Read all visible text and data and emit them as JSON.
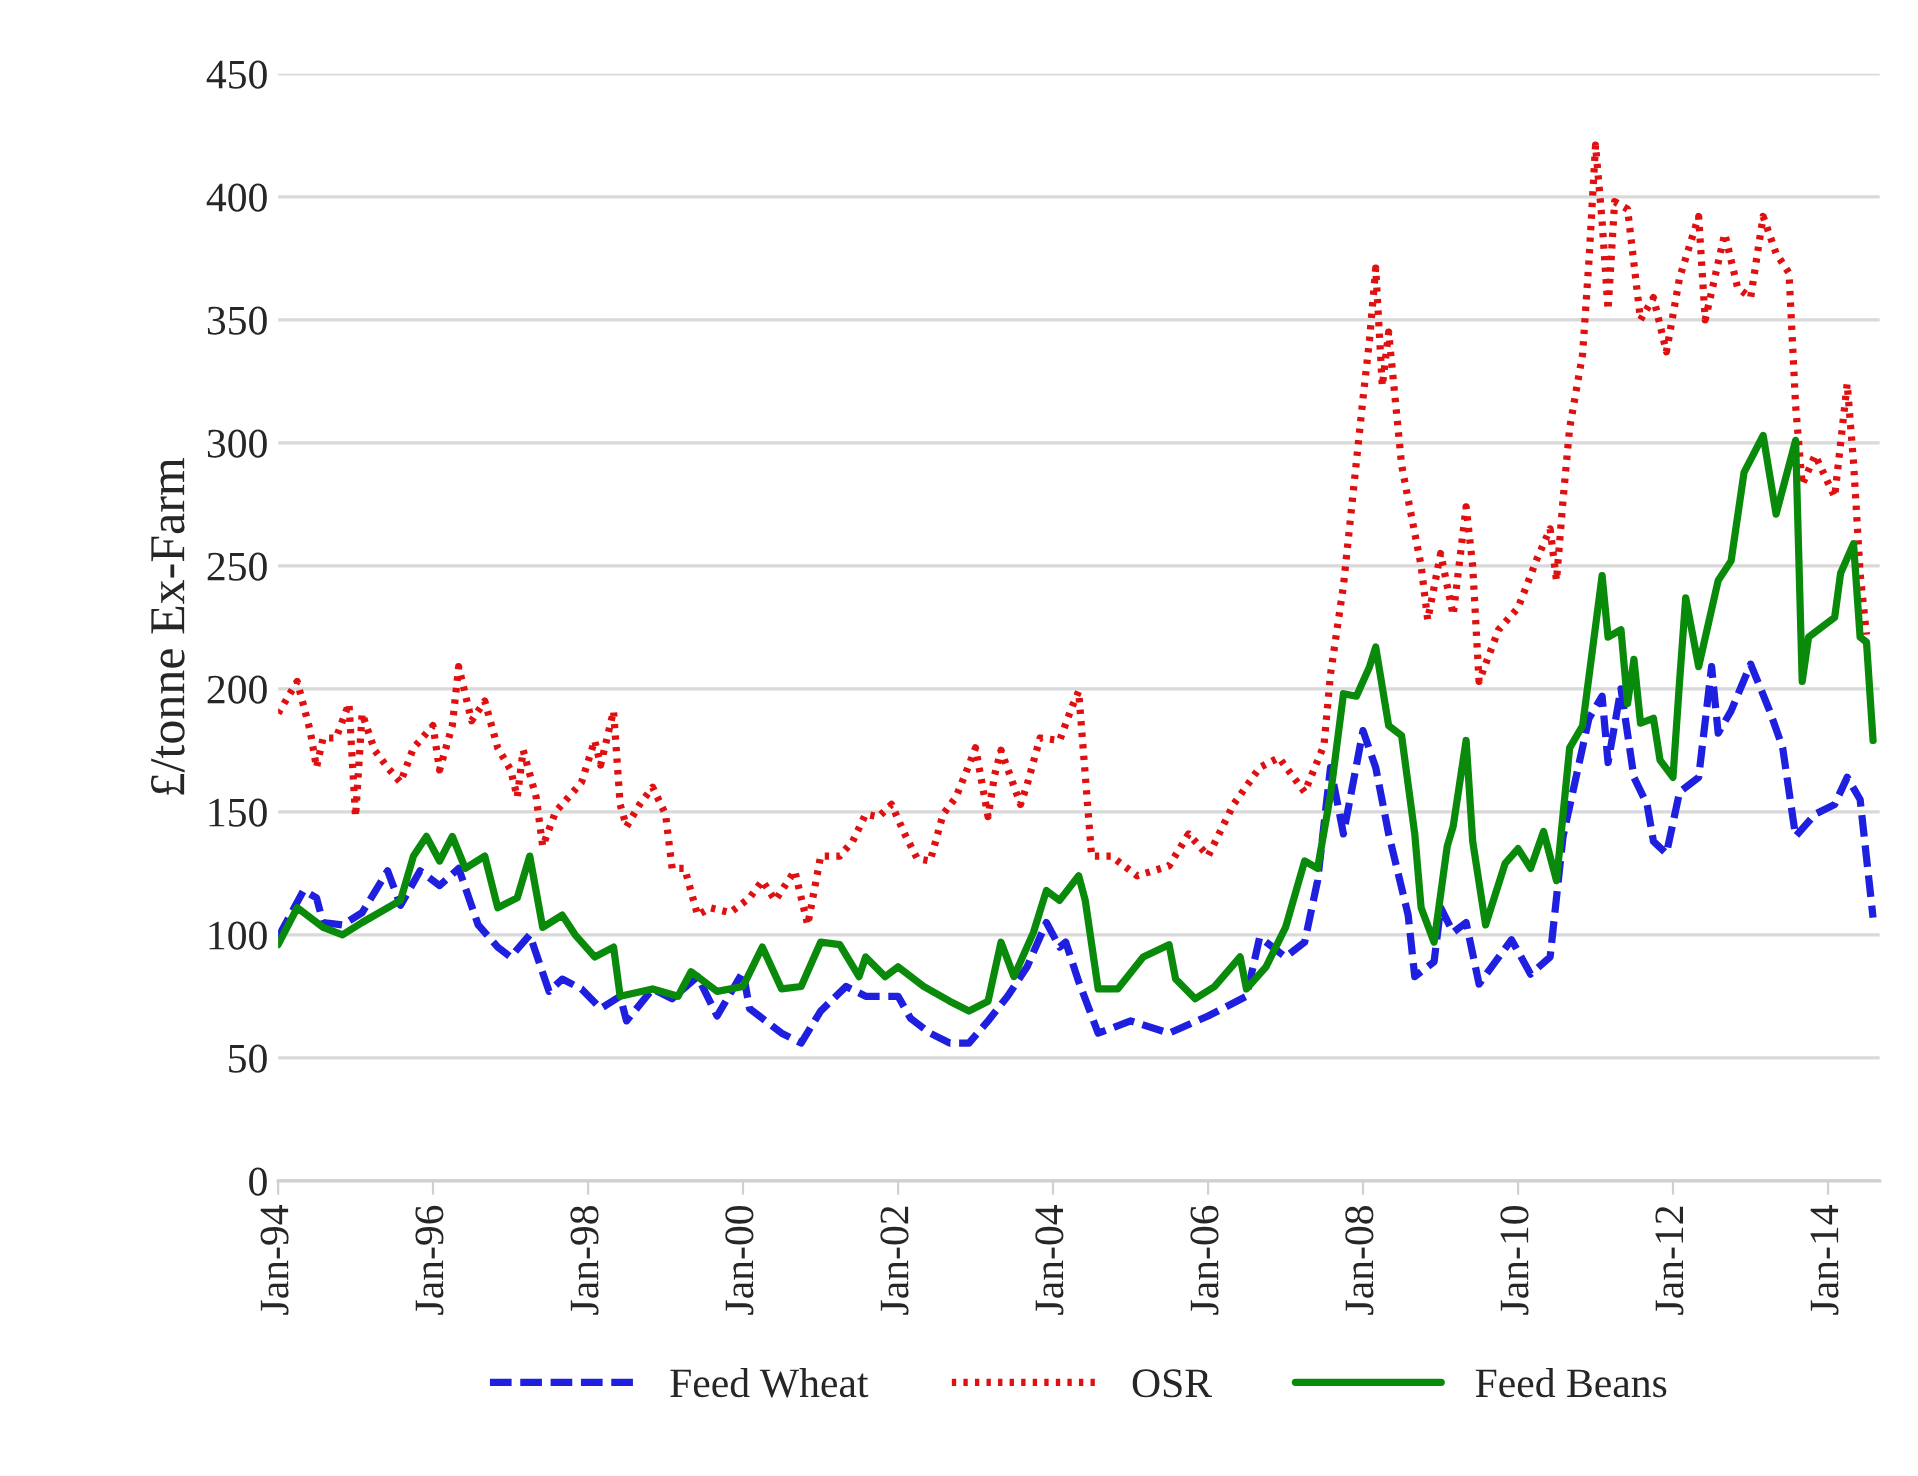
{
  "chart_data": {
    "type": "line",
    "ylabel": "£/tonne Ex-Farm",
    "ylim": [
      0,
      450
    ],
    "yticks": [
      0,
      50,
      100,
      150,
      200,
      250,
      300,
      350,
      400,
      450
    ],
    "xlim": [
      "1994-01",
      "2014-09"
    ],
    "xticks": [
      {
        "value": "1994-01",
        "label": "Jan-94"
      },
      {
        "value": "1996-01",
        "label": "Jan-96"
      },
      {
        "value": "1998-01",
        "label": "Jan-98"
      },
      {
        "value": "2000-01",
        "label": "Jan-00"
      },
      {
        "value": "2002-01",
        "label": "Jan-02"
      },
      {
        "value": "2004-01",
        "label": "Jan-04"
      },
      {
        "value": "2006-01",
        "label": "Jan-06"
      },
      {
        "value": "2008-01",
        "label": "Jan-08"
      },
      {
        "value": "2010-01",
        "label": "Jan-10"
      },
      {
        "value": "2012-01",
        "label": "Jan-12"
      },
      {
        "value": "2014-01",
        "label": "Jan-14"
      }
    ],
    "grid": "y",
    "legend": "bottom",
    "marker": "none",
    "series": [
      {
        "name": "Feed Wheat",
        "color": "#1f1fe0",
        "line_style": "dashed",
        "x": [
          "1994-01",
          "1994-05",
          "1994-07",
          "1994-08",
          "1994-11",
          "1995-02",
          "1995-06",
          "1995-08",
          "1995-11",
          "1996-02",
          "1996-05",
          "1996-08",
          "1996-11",
          "1997-01",
          "1997-04",
          "1997-07",
          "1997-09",
          "1997-12",
          "1998-03",
          "1998-06",
          "1998-07",
          "1998-11",
          "1999-02",
          "1999-06",
          "1999-09",
          "2000-01",
          "2000-02",
          "2000-07",
          "2000-10",
          "2001-01",
          "2001-05",
          "2001-08",
          "2002-01",
          "2002-03",
          "2002-06",
          "2002-09",
          "2002-12",
          "2003-03",
          "2003-06",
          "2003-09",
          "2003-12",
          "2004-02",
          "2004-03",
          "2004-05",
          "2004-08",
          "2005-01",
          "2005-07",
          "2006-01",
          "2006-07",
          "2006-09",
          "2007-01",
          "2007-04",
          "2007-06",
          "2007-08",
          "2007-10",
          "2008-01",
          "2008-03",
          "2008-05",
          "2008-08",
          "2008-09",
          "2008-12",
          "2009-01",
          "2009-03",
          "2009-05",
          "2009-07",
          "2009-12",
          "2010-03",
          "2010-06",
          "2010-08",
          "2010-12",
          "2011-02",
          "2011-03",
          "2011-05",
          "2011-07",
          "2011-09",
          "2011-10",
          "2011-12",
          "2012-02",
          "2012-05",
          "2012-07",
          "2012-08",
          "2012-10",
          "2013-01",
          "2013-04",
          "2013-06",
          "2013-08",
          "2013-11",
          "2014-02",
          "2014-04",
          "2014-06",
          "2014-08"
        ],
        "values": [
          99,
          118,
          115,
          105,
          104,
          109,
          126,
          112,
          126,
          120,
          127,
          104,
          95,
          91,
          100,
          77,
          82,
          78,
          70,
          75,
          65,
          78,
          74,
          83,
          67,
          85,
          70,
          60,
          56,
          69,
          79,
          75,
          75,
          66,
          60,
          56,
          56,
          65,
          75,
          87,
          105,
          95,
          97,
          81,
          60,
          65,
          60,
          67,
          75,
          99,
          91,
          97,
          122,
          168,
          141,
          183,
          168,
          141,
          108,
          83,
          89,
          111,
          101,
          105,
          80,
          98,
          84,
          91,
          140,
          188,
          197,
          170,
          200,
          164,
          153,
          138,
          133,
          158,
          164,
          209,
          182,
          191,
          210,
          191,
          176,
          140,
          149,
          153,
          164,
          155,
          107
        ]
      },
      {
        "name": "OSR",
        "color": "#e01010",
        "line_style": "dotted",
        "x": [
          "1994-01",
          "1994-04",
          "1994-06",
          "1994-07",
          "1994-08",
          "1994-10",
          "1994-12",
          "1995-01",
          "1995-02",
          "1995-04",
          "1995-06",
          "1995-08",
          "1995-10",
          "1996-01",
          "1996-02",
          "1996-04",
          "1996-05",
          "1996-07",
          "1996-09",
          "1996-11",
          "1997-01",
          "1997-02",
          "1997-03",
          "1997-05",
          "1997-06",
          "1997-08",
          "1997-10",
          "1997-12",
          "1998-02",
          "1998-03",
          "1998-05",
          "1998-06",
          "1998-07",
          "1998-09",
          "1998-11",
          "1999-01",
          "1999-02",
          "1999-04",
          "1999-06",
          "1999-08",
          "1999-11",
          "2000-02",
          "2000-04",
          "2000-06",
          "2000-09",
          "2000-11",
          "2001-01",
          "2001-04",
          "2001-06",
          "2001-08",
          "2001-10",
          "2001-12",
          "2002-02",
          "2002-04",
          "2002-06",
          "2002-08",
          "2002-10",
          "2002-12",
          "2003-01",
          "2003-03",
          "2003-04",
          "2003-05",
          "2003-08",
          "2003-09",
          "2003-11",
          "2004-02",
          "2004-04",
          "2004-05",
          "2004-06",
          "2004-07",
          "2004-10",
          "2005-02",
          "2005-07",
          "2005-10",
          "2006-01",
          "2006-05",
          "2006-09",
          "2006-12",
          "2007-04",
          "2007-07",
          "2007-08",
          "2007-10",
          "2008-01",
          "2008-02",
          "2008-03",
          "2008-04",
          "2008-05",
          "2008-07",
          "2008-08",
          "2008-10",
          "2008-11",
          "2009-01",
          "2009-03",
          "2009-05",
          "2009-06",
          "2009-07",
          "2009-10",
          "2010-01",
          "2010-04",
          "2010-06",
          "2010-07",
          "2010-08",
          "2010-09",
          "2010-11",
          "2010-12",
          "2011-01",
          "2011-02",
          "2011-03",
          "2011-04",
          "2011-06",
          "2011-08",
          "2011-10",
          "2011-12",
          "2012-02",
          "2012-05",
          "2012-06",
          "2012-09",
          "2012-11",
          "2013-01",
          "2013-03",
          "2013-05",
          "2013-07",
          "2013-08",
          "2013-09",
          "2013-11",
          "2014-02",
          "2014-04",
          "2014-05",
          "2014-06",
          "2014-07"
        ],
        "values": [
          190,
          203,
          183,
          168,
          180,
          180,
          194,
          148,
          190,
          175,
          168,
          162,
          176,
          185,
          167,
          185,
          209,
          187,
          195,
          176,
          167,
          156,
          175,
          156,
          136,
          150,
          156,
          162,
          179,
          169,
          191,
          153,
          144,
          153,
          160,
          149,
          127,
          127,
          108,
          111,
          109,
          115,
          122,
          114,
          126,
          104,
          132,
          132,
          138,
          149,
          148,
          153,
          141,
          131,
          130,
          149,
          156,
          169,
          176,
          148,
          165,
          175,
          153,
          161,
          180,
          179,
          193,
          199,
          165,
          132,
          132,
          124,
          128,
          141,
          132,
          153,
          168,
          172,
          158,
          177,
          206,
          242,
          318,
          342,
          371,
          323,
          345,
          291,
          277,
          250,
          228,
          255,
          230,
          274,
          250,
          203,
          224,
          233,
          253,
          265,
          244,
          277,
          306,
          336,
          374,
          421,
          390,
          354,
          398,
          395,
          350,
          359,
          337,
          367,
          392,
          350,
          385,
          363,
          359,
          392,
          377,
          369,
          315,
          283,
          295,
          278,
          324,
          292,
          247,
          222
        ]
      },
      {
        "name": "Feed Beans",
        "color": "#0a8a0a",
        "line_style": "solid",
        "x": [
          "1994-01",
          "1994-04",
          "1994-08",
          "1994-11",
          "1995-02",
          "1995-08",
          "1995-10",
          "1995-12",
          "1996-02",
          "1996-04",
          "1996-06",
          "1996-09",
          "1996-11",
          "1997-02",
          "1997-04",
          "1997-06",
          "1997-09",
          "1997-11",
          "1998-02",
          "1998-05",
          "1998-06",
          "1998-11",
          "1999-03",
          "1999-05",
          "1999-09",
          "2000-01",
          "2000-04",
          "2000-07",
          "2000-10",
          "2001-01",
          "2001-04",
          "2001-07",
          "2001-08",
          "2001-11",
          "2002-01",
          "2002-05",
          "2002-09",
          "2002-12",
          "2003-03",
          "2003-05",
          "2003-07",
          "2003-10",
          "2003-12",
          "2004-02",
          "2004-05",
          "2004-06",
          "2004-08",
          "2004-11",
          "2005-03",
          "2005-07",
          "2005-08",
          "2005-11",
          "2006-02",
          "2006-06",
          "2006-07",
          "2006-10",
          "2007-01",
          "2007-04",
          "2007-06",
          "2007-08",
          "2007-10",
          "2007-12",
          "2008-02",
          "2008-03",
          "2008-05",
          "2008-07",
          "2008-09",
          "2008-10",
          "2008-12",
          "2009-02",
          "2009-03",
          "2009-05",
          "2009-06",
          "2009-08",
          "2009-11",
          "2010-01",
          "2010-03",
          "2010-05",
          "2010-07",
          "2010-09",
          "2010-11",
          "2011-02",
          "2011-03",
          "2011-05",
          "2011-06",
          "2011-07",
          "2011-08",
          "2011-10",
          "2011-11",
          "2012-01",
          "2012-02",
          "2012-03",
          "2012-05",
          "2012-08",
          "2012-10",
          "2012-12",
          "2013-03",
          "2013-05",
          "2013-08",
          "2013-09",
          "2013-10",
          "2014-02",
          "2014-03",
          "2014-05",
          "2014-06",
          "2014-07",
          "2014-08"
        ],
        "values": [
          96,
          111,
          103,
          100,
          105,
          114,
          132,
          140,
          130,
          140,
          127,
          132,
          111,
          115,
          132,
          103,
          108,
          100,
          91,
          95,
          75,
          78,
          75,
          85,
          77,
          79,
          95,
          78,
          79,
          97,
          96,
          83,
          91,
          83,
          87,
          79,
          73,
          69,
          73,
          97,
          83,
          101,
          118,
          114,
          124,
          114,
          78,
          78,
          91,
          96,
          82,
          74,
          79,
          91,
          78,
          87,
          103,
          130,
          127,
          157,
          198,
          197,
          209,
          217,
          185,
          181,
          141,
          111,
          97,
          136,
          144,
          179,
          138,
          104,
          129,
          135,
          127,
          142,
          122,
          176,
          185,
          246,
          221,
          224,
          194,
          212,
          186,
          188,
          171,
          164,
          203,
          237,
          209,
          244,
          252,
          288,
          303,
          271,
          301,
          203,
          221,
          229,
          247,
          259,
          221,
          219,
          179
        ]
      }
    ]
  }
}
